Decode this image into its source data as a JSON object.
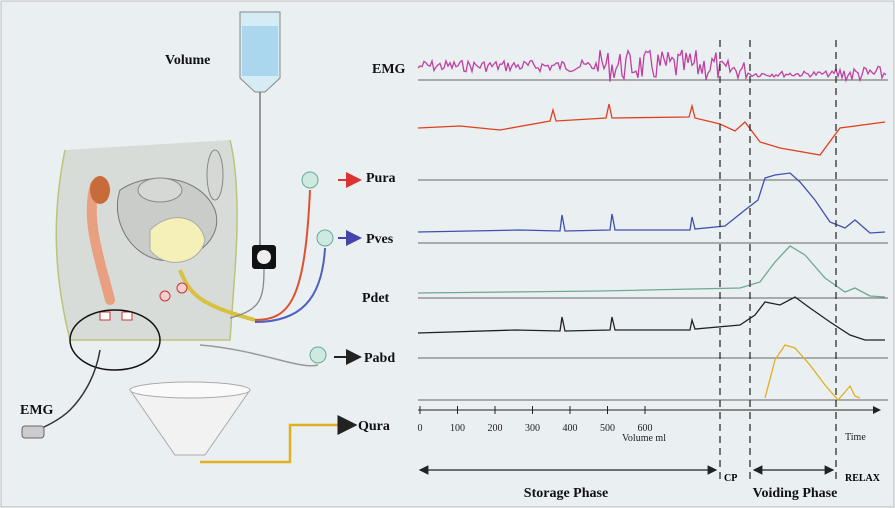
{
  "source_labels": {
    "volume": "Volume",
    "emg": "EMG"
  },
  "channels": [
    "EMG",
    "Pura",
    "Pves",
    "Pdet",
    "Pabd",
    "Qura"
  ],
  "axis": {
    "ticks": [
      0,
      100,
      200,
      300,
      400,
      500,
      600
    ],
    "label": "Volume ml",
    "time": "Time"
  },
  "phases": {
    "storage": "Storage Phase",
    "cp": "CP",
    "voiding": "Voiding Phase",
    "relax": "RELAX"
  }
}
